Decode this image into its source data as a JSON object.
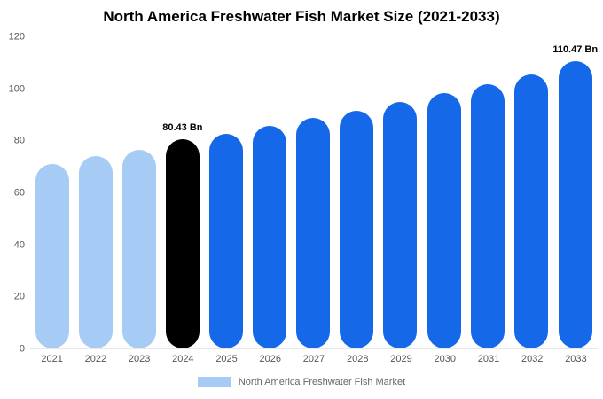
{
  "chart_data": {
    "type": "bar",
    "title": "North America Freshwater Fish Market Size (2021-2033)",
    "categories": [
      "2021",
      "2022",
      "2023",
      "2024",
      "2025",
      "2026",
      "2027",
      "2028",
      "2029",
      "2030",
      "2031",
      "2032",
      "2033"
    ],
    "values": [
      71,
      74,
      76.5,
      80.43,
      82.5,
      85.5,
      88.5,
      91.5,
      94.8,
      98.2,
      101.6,
      105.4,
      110.47
    ],
    "unit": "Bn",
    "xlabel": "",
    "ylabel": "",
    "ylim": [
      0,
      120
    ],
    "yticks": [
      0,
      20,
      40,
      60,
      80,
      100,
      120
    ],
    "grid": false,
    "annotations": [
      {
        "index": 3,
        "text": "80.43 Bn"
      },
      {
        "index": 12,
        "text": "110.47 Bn"
      }
    ],
    "color_roles": [
      "past",
      "past",
      "past",
      "highlight",
      "forecast",
      "forecast",
      "forecast",
      "forecast",
      "forecast",
      "forecast",
      "forecast",
      "forecast",
      "forecast"
    ],
    "bar_colors": {
      "past": "#a6cbf4",
      "highlight": "#000000",
      "forecast": "#1568e8"
    },
    "legend_position": "bottom",
    "legend": {
      "label": "North America Freshwater Fish Market",
      "swatch_color": "#a6cbf4"
    }
  }
}
